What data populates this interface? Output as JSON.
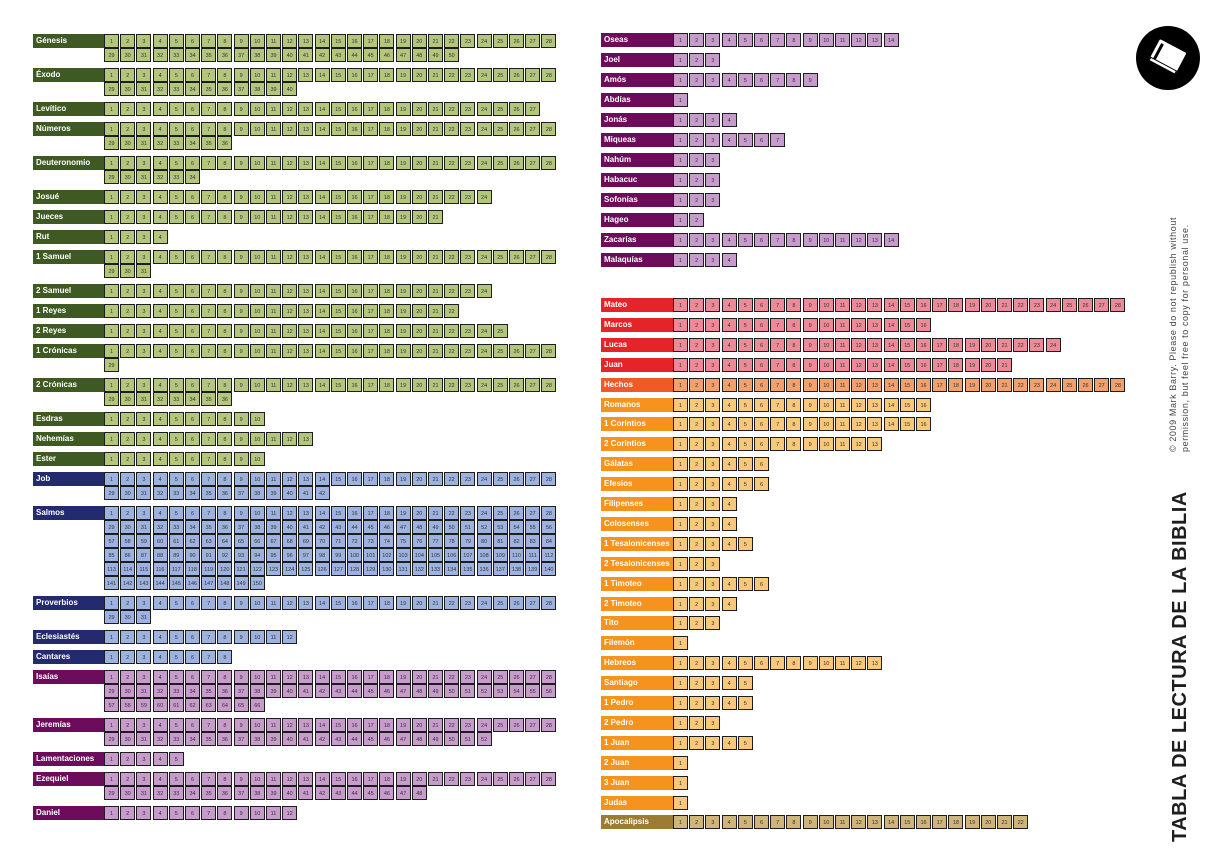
{
  "title": "TABLA DE LECTURA DE LA BIBLIA",
  "copyright": [
    "© 2009  Mark Barry.   Please do  not  republish without",
    "permission, but feel free to copy for personal use."
  ],
  "logo_icon": "book-icon",
  "colors": {
    "law_label": "#3e5a22",
    "law_cell": "#b3c67c",
    "wisdom_label": "#232a6e",
    "wisdom_cell": "#9eb2df",
    "prophets_label": "#6c0c5a",
    "prophets_cell": "#c79bcb",
    "gospels_label": "#e5242a",
    "gospels_cell": "#ee8a97",
    "acts_label": "#f05a28",
    "acts_cell": "#f3a06a",
    "epistles_label": "#f6921e",
    "epistles_cell": "#f9c87a",
    "revelation_label": "#9c7c32",
    "revelation_cell": "#cfb57a"
  },
  "columns": [
    {
      "books": [
        {
          "name": "Génesis",
          "chapters": 50,
          "group": "law"
        },
        {
          "name": "Éxodo",
          "chapters": 40,
          "group": "law"
        },
        {
          "name": "Levítico",
          "chapters": 27,
          "group": "law"
        },
        {
          "name": "Números",
          "chapters": 36,
          "group": "law"
        },
        {
          "name": "Deuteronomio",
          "chapters": 34,
          "group": "law"
        },
        {
          "name": "Josué",
          "chapters": 24,
          "group": "law"
        },
        {
          "name": "Jueces",
          "chapters": 21,
          "group": "law"
        },
        {
          "name": "Rut",
          "chapters": 4,
          "group": "law"
        },
        {
          "name": "1 Samuel",
          "chapters": 31,
          "group": "law"
        },
        {
          "name": "2 Samuel",
          "chapters": 24,
          "group": "law"
        },
        {
          "name": "1 Reyes",
          "chapters": 22,
          "group": "law"
        },
        {
          "name": "2 Reyes",
          "chapters": 25,
          "group": "law"
        },
        {
          "name": "1 Crónicas",
          "chapters": 29,
          "group": "law"
        },
        {
          "name": "2 Crónicas",
          "chapters": 36,
          "group": "law"
        },
        {
          "name": "Esdras",
          "chapters": 10,
          "group": "law"
        },
        {
          "name": "Nehemías",
          "chapters": 13,
          "group": "law"
        },
        {
          "name": "Ester",
          "chapters": 10,
          "group": "law"
        },
        {
          "name": "Job",
          "chapters": 42,
          "group": "wisdom"
        },
        {
          "name": "Salmos",
          "chapters": 150,
          "group": "wisdom"
        },
        {
          "name": "Proverbios",
          "chapters": 31,
          "group": "wisdom"
        },
        {
          "name": "Eclesiastés",
          "chapters": 12,
          "group": "wisdom"
        },
        {
          "name": "Cantares",
          "chapters": 8,
          "group": "wisdom"
        },
        {
          "name": "Isaías",
          "chapters": 66,
          "group": "prophets"
        },
        {
          "name": "Jeremías",
          "chapters": 52,
          "group": "prophets"
        },
        {
          "name": "Lamentaciones",
          "chapters": 5,
          "group": "prophets"
        },
        {
          "name": "Ezequiel",
          "chapters": 48,
          "group": "prophets"
        },
        {
          "name": "Daniel",
          "chapters": 12,
          "group": "prophets"
        }
      ]
    },
    {
      "books": [
        {
          "name": "Oseas",
          "chapters": 14,
          "group": "prophets"
        },
        {
          "name": "Joel",
          "chapters": 3,
          "group": "prophets"
        },
        {
          "name": "Amós",
          "chapters": 9,
          "group": "prophets"
        },
        {
          "name": "Abdías",
          "chapters": 1,
          "group": "prophets"
        },
        {
          "name": "Jonás",
          "chapters": 4,
          "group": "prophets"
        },
        {
          "name": "Miqueas",
          "chapters": 7,
          "group": "prophets"
        },
        {
          "name": "Nahúm",
          "chapters": 3,
          "group": "prophets"
        },
        {
          "name": "Habacuc",
          "chapters": 3,
          "group": "prophets"
        },
        {
          "name": "Sofonías",
          "chapters": 3,
          "group": "prophets"
        },
        {
          "name": "Hageo",
          "chapters": 2,
          "group": "prophets"
        },
        {
          "name": "Zacarías",
          "chapters": 14,
          "group": "prophets"
        },
        {
          "name": "Malaquías",
          "chapters": 4,
          "group": "prophets"
        }
      ]
    },
    {
      "books": [
        {
          "name": "Mateo",
          "chapters": 28,
          "group": "gospels"
        },
        {
          "name": "Marcos",
          "chapters": 16,
          "group": "gospels"
        },
        {
          "name": "Lucas",
          "chapters": 24,
          "group": "gospels"
        },
        {
          "name": "Juan",
          "chapters": 21,
          "group": "gospels"
        },
        {
          "name": "Hechos",
          "chapters": 28,
          "group": "acts"
        },
        {
          "name": "Romanos",
          "chapters": 16,
          "group": "epistles"
        },
        {
          "name": "1 Corintios",
          "chapters": 16,
          "group": "epistles"
        },
        {
          "name": "2 Corintios",
          "chapters": 13,
          "group": "epistles"
        },
        {
          "name": "Gálatas",
          "chapters": 6,
          "group": "epistles"
        },
        {
          "name": "Efesios",
          "chapters": 6,
          "group": "epistles"
        },
        {
          "name": "Filipenses",
          "chapters": 4,
          "group": "epistles"
        },
        {
          "name": "Colosenses",
          "chapters": 4,
          "group": "epistles"
        },
        {
          "name": "1 Tesalonicenses",
          "chapters": 5,
          "group": "epistles"
        },
        {
          "name": "2 Tesalonicenses",
          "chapters": 3,
          "group": "epistles"
        },
        {
          "name": "1 Timoteo",
          "chapters": 6,
          "group": "epistles"
        },
        {
          "name": "2 Timoteo",
          "chapters": 4,
          "group": "epistles"
        },
        {
          "name": "Tito",
          "chapters": 3,
          "group": "epistles"
        },
        {
          "name": "Filemón",
          "chapters": 1,
          "group": "epistles"
        },
        {
          "name": "Hebreos",
          "chapters": 13,
          "group": "epistles"
        },
        {
          "name": "Santiago",
          "chapters": 5,
          "group": "epistles"
        },
        {
          "name": "1 Pedro",
          "chapters": 5,
          "group": "epistles"
        },
        {
          "name": "2 Pedro",
          "chapters": 3,
          "group": "epistles"
        },
        {
          "name": "1 Juan",
          "chapters": 5,
          "group": "epistles"
        },
        {
          "name": "2 Juan",
          "chapters": 1,
          "group": "epistles"
        },
        {
          "name": "3 Juan",
          "chapters": 1,
          "group": "epistles"
        },
        {
          "name": "Judas",
          "chapters": 1,
          "group": "epistles"
        },
        {
          "name": "Apocalipsis",
          "chapters": 22,
          "group": "revelation"
        }
      ]
    }
  ]
}
